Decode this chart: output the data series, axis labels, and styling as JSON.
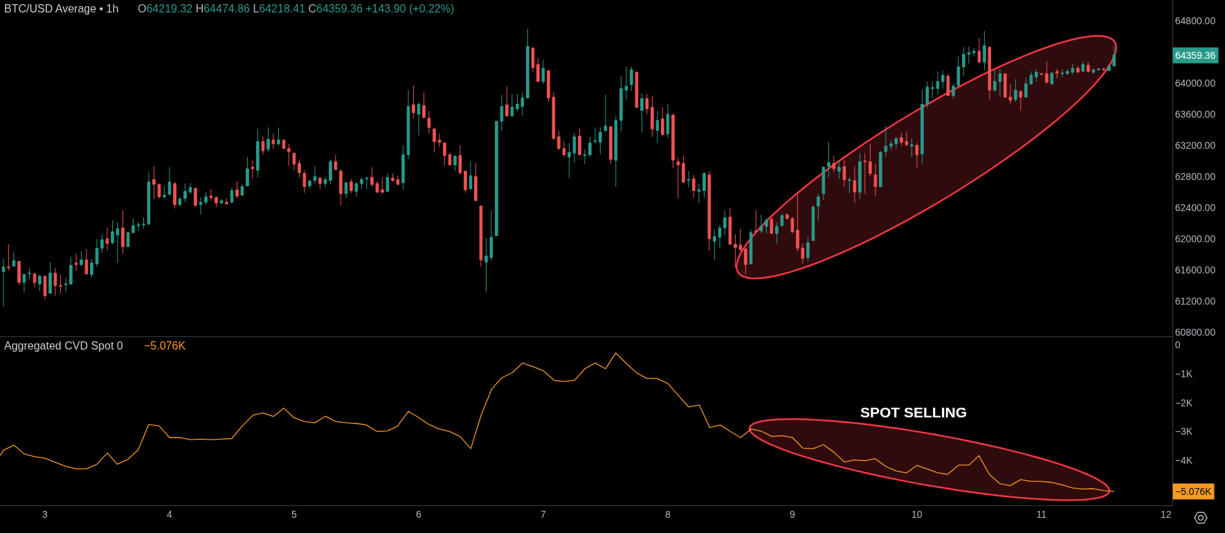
{
  "chart_data": [
    {
      "type": "candlestick",
      "title": "BTC/USD Average • 1h",
      "annotations": [
        "O64219.32 H64474.86 L64218.41 C64359.36 +143.90 (+0.22%)",
        "64359.36"
      ],
      "x": [
        2.667,
        2.708,
        2.75,
        2.792,
        2.833,
        2.875,
        2.917,
        2.958,
        3,
        3.042,
        3.083,
        3.125,
        3.167,
        3.208,
        3.25,
        3.292,
        3.333,
        3.375,
        3.417,
        3.458,
        3.5,
        3.542,
        3.583,
        3.625,
        3.667,
        3.708,
        3.75,
        3.792,
        3.833,
        3.875,
        3.917,
        3.958,
        4,
        4.042,
        4.083,
        4.125,
        4.167,
        4.208,
        4.25,
        4.292,
        4.333,
        4.375,
        4.417,
        4.458,
        4.5,
        4.542,
        4.583,
        4.625,
        4.667,
        4.708,
        4.75,
        4.792,
        4.833,
        4.875,
        4.917,
        4.958,
        5,
        5.042,
        5.083,
        5.125,
        5.167,
        5.208,
        5.25,
        5.292,
        5.333,
        5.375,
        5.417,
        5.458,
        5.5,
        5.542,
        5.583,
        5.625,
        5.667,
        5.708,
        5.75,
        5.792,
        5.833,
        5.875,
        5.917,
        5.958,
        6,
        6.042,
        6.083,
        6.125,
        6.167,
        6.208,
        6.25,
        6.292,
        6.333,
        6.375,
        6.417,
        6.458,
        6.5,
        6.542,
        6.583,
        6.625,
        6.667,
        6.708,
        6.75,
        6.792,
        6.833,
        6.875,
        6.917,
        6.958,
        7,
        7.042,
        7.083,
        7.125,
        7.167,
        7.208,
        7.25,
        7.292,
        7.333,
        7.375,
        7.417,
        7.458,
        7.5,
        7.542,
        7.583,
        7.625,
        7.667,
        7.708,
        7.75,
        7.792,
        7.833,
        7.875,
        7.917,
        7.958,
        8,
        8.042,
        8.083,
        8.125,
        8.167,
        8.208,
        8.25,
        8.292,
        8.333,
        8.375,
        8.417,
        8.458,
        8.5,
        8.542,
        8.583,
        8.625,
        8.667,
        8.708,
        8.75,
        8.792,
        8.833,
        8.875,
        8.917,
        8.958,
        9,
        9.042,
        9.083,
        9.125,
        9.167,
        9.208,
        9.25,
        9.292,
        9.333,
        9.375,
        9.417,
        9.458,
        9.5,
        9.542,
        9.583,
        9.625,
        9.667,
        9.708,
        9.75,
        9.792,
        9.833,
        9.875,
        9.917,
        9.958,
        10,
        10.042,
        10.083,
        10.125,
        10.167,
        10.208,
        10.25,
        10.292,
        10.333,
        10.375,
        10.417,
        10.458,
        10.5,
        10.542,
        10.583,
        10.625,
        10.667,
        10.708,
        10.75,
        10.792,
        10.833,
        10.875,
        10.917,
        10.958,
        11,
        11.042,
        11.083,
        11.125,
        11.167,
        11.208,
        11.25,
        11.292,
        11.333,
        11.375,
        11.417,
        11.458,
        11.5,
        11.542,
        11.583
      ],
      "ohlc": [
        [
          61580,
          61740,
          61130,
          61640
        ],
        [
          61640,
          61930,
          61590,
          61630
        ],
        [
          61650,
          61840,
          61640,
          61720
        ],
        [
          61710,
          61720,
          61410,
          61440
        ],
        [
          61440,
          61560,
          61310,
          61540
        ],
        [
          61550,
          61620,
          61480,
          61560
        ],
        [
          61550,
          61560,
          61380,
          61440
        ],
        [
          61420,
          61540,
          61330,
          61520
        ],
        [
          61520,
          61530,
          61220,
          61270
        ],
        [
          61300,
          61700,
          61300,
          61560
        ],
        [
          61560,
          61630,
          61270,
          61400
        ],
        [
          61400,
          61540,
          61300,
          61390
        ],
        [
          61410,
          61500,
          61310,
          61420
        ],
        [
          61420,
          61770,
          61410,
          61660
        ],
        [
          61690,
          61810,
          61590,
          61670
        ],
        [
          61670,
          61840,
          61650,
          61730
        ],
        [
          61730,
          61870,
          61540,
          61550
        ],
        [
          61540,
          61740,
          61500,
          61690
        ],
        [
          61680,
          62000,
          61640,
          61880
        ],
        [
          61880,
          62060,
          61820,
          61990
        ],
        [
          62000,
          62140,
          61850,
          61940
        ],
        [
          61950,
          62240,
          61930,
          62090
        ],
        [
          62050,
          62220,
          61690,
          62130
        ],
        [
          62140,
          62360,
          61810,
          61900
        ],
        [
          61900,
          62090,
          61900,
          62080
        ],
        [
          62080,
          62260,
          62070,
          62170
        ],
        [
          62170,
          62220,
          62100,
          62180
        ],
        [
          62180,
          62280,
          62130,
          62190
        ],
        [
          62190,
          62850,
          62180,
          62730
        ],
        [
          62760,
          62930,
          62510,
          62700
        ],
        [
          62700,
          62710,
          62520,
          62540
        ],
        [
          62540,
          62670,
          62510,
          62560
        ],
        [
          62570,
          62920,
          62560,
          62730
        ],
        [
          62710,
          62730,
          62390,
          62440
        ],
        [
          62440,
          62540,
          62420,
          62510
        ],
        [
          62520,
          62710,
          62470,
          62610
        ],
        [
          62600,
          62720,
          62580,
          62660
        ],
        [
          62650,
          62650,
          62410,
          62430
        ],
        [
          62440,
          62530,
          62310,
          62470
        ],
        [
          62470,
          62600,
          62440,
          62540
        ],
        [
          62550,
          62640,
          62490,
          62530
        ],
        [
          62530,
          62550,
          62410,
          62460
        ],
        [
          62460,
          62510,
          62440,
          62490
        ],
        [
          62470,
          62520,
          62440,
          62450
        ],
        [
          62470,
          62660,
          62460,
          62620
        ],
        [
          62630,
          62740,
          62520,
          62550
        ],
        [
          62560,
          62700,
          62550,
          62670
        ],
        [
          62680,
          63050,
          62670,
          62900
        ],
        [
          62920,
          63010,
          62770,
          62900
        ],
        [
          62880,
          63410,
          62790,
          63250
        ],
        [
          63250,
          63320,
          63080,
          63130
        ],
        [
          63150,
          63430,
          63110,
          63280
        ],
        [
          63270,
          63350,
          63150,
          63220
        ],
        [
          63220,
          63430,
          63200,
          63270
        ],
        [
          63270,
          63280,
          63150,
          63160
        ],
        [
          63160,
          63220,
          62940,
          63120
        ],
        [
          63100,
          63110,
          62890,
          62960
        ],
        [
          62970,
          63020,
          62790,
          62850
        ],
        [
          62840,
          62880,
          62590,
          62670
        ],
        [
          62680,
          62760,
          62640,
          62740
        ],
        [
          62750,
          62930,
          62710,
          62800
        ],
        [
          62780,
          62790,
          62640,
          62710
        ],
        [
          62710,
          62800,
          62660,
          62760
        ],
        [
          62750,
          63020,
          62700,
          62990
        ],
        [
          62990,
          63080,
          62880,
          62890
        ],
        [
          62870,
          62890,
          62430,
          62580
        ],
        [
          62580,
          62730,
          62520,
          62720
        ],
        [
          62730,
          62770,
          62590,
          62620
        ],
        [
          62610,
          62720,
          62540,
          62710
        ],
        [
          62710,
          62790,
          62640,
          62760
        ],
        [
          62770,
          62790,
          62640,
          62780
        ],
        [
          62790,
          62920,
          62670,
          62700
        ],
        [
          62710,
          62740,
          62590,
          62600
        ],
        [
          62630,
          62790,
          62580,
          62600
        ],
        [
          62610,
          62840,
          62600,
          62790
        ],
        [
          62780,
          62840,
          62730,
          62750
        ],
        [
          62760,
          62810,
          62690,
          62700
        ],
        [
          62720,
          63200,
          62630,
          63080
        ],
        [
          63080,
          63910,
          63020,
          63700
        ],
        [
          63720,
          63970,
          63550,
          63620
        ],
        [
          63600,
          63750,
          63330,
          63730
        ],
        [
          63710,
          63880,
          63540,
          63560
        ],
        [
          63550,
          63640,
          63350,
          63430
        ],
        [
          63410,
          63430,
          63110,
          63250
        ],
        [
          63270,
          63350,
          63180,
          63240
        ],
        [
          63230,
          63240,
          62940,
          63070
        ],
        [
          63080,
          63110,
          62950,
          62950
        ],
        [
          62950,
          63080,
          62870,
          63060
        ],
        [
          63070,
          63200,
          62820,
          62850
        ],
        [
          62870,
          62870,
          62590,
          62630
        ],
        [
          62640,
          63000,
          62640,
          62810
        ],
        [
          62800,
          62970,
          62490,
          62490
        ],
        [
          62420,
          62430,
          61640,
          61730
        ],
        [
          61700,
          62010,
          61310,
          61780
        ],
        [
          61760,
          62360,
          61720,
          62020
        ],
        [
          62040,
          63520,
          62040,
          63510
        ],
        [
          63510,
          63850,
          63380,
          63700
        ],
        [
          63720,
          63960,
          63560,
          63580
        ],
        [
          63580,
          63860,
          63560,
          63690
        ],
        [
          63670,
          63860,
          63640,
          63730
        ],
        [
          63700,
          63880,
          63580,
          63810
        ],
        [
          63810,
          64700,
          63810,
          64470
        ],
        [
          64450,
          64460,
          64140,
          64200
        ],
        [
          64240,
          64320,
          64020,
          64020
        ],
        [
          64020,
          64300,
          63990,
          64190
        ],
        [
          64160,
          64160,
          63760,
          63810
        ],
        [
          63820,
          63880,
          63270,
          63290
        ],
        [
          63310,
          63390,
          63140,
          63160
        ],
        [
          63160,
          63250,
          63050,
          63080
        ],
        [
          63050,
          63230,
          62780,
          63110
        ],
        [
          63100,
          63360,
          62980,
          63310
        ],
        [
          63320,
          63420,
          63070,
          63080
        ],
        [
          63070,
          63150,
          62960,
          63080
        ],
        [
          63080,
          63310,
          63050,
          63230
        ],
        [
          63250,
          63430,
          63220,
          63260
        ],
        [
          63240,
          63430,
          63090,
          63370
        ],
        [
          63390,
          63850,
          63370,
          63450
        ],
        [
          63440,
          63450,
          62960,
          63020
        ],
        [
          63010,
          63570,
          62670,
          63520
        ],
        [
          63520,
          64090,
          63380,
          63930
        ],
        [
          63910,
          64210,
          63790,
          63960
        ],
        [
          63980,
          64210,
          63900,
          64170
        ],
        [
          64140,
          64150,
          63680,
          63690
        ],
        [
          63650,
          63870,
          63370,
          63800
        ],
        [
          63800,
          63860,
          63600,
          63670
        ],
        [
          63690,
          63840,
          63310,
          63410
        ],
        [
          63390,
          63640,
          63230,
          63520
        ],
        [
          63540,
          63690,
          63320,
          63340
        ],
        [
          63350,
          63730,
          63300,
          63600
        ],
        [
          63590,
          63610,
          62910,
          63010
        ],
        [
          62990,
          63040,
          62520,
          62950
        ],
        [
          62970,
          63070,
          62710,
          62730
        ],
        [
          62750,
          62870,
          62660,
          62760
        ],
        [
          62770,
          62820,
          62530,
          62620
        ],
        [
          62610,
          62710,
          62460,
          62630
        ],
        [
          62620,
          62860,
          62530,
          62840
        ],
        [
          62820,
          62870,
          61850,
          62000
        ],
        [
          61970,
          62130,
          61730,
          62030
        ],
        [
          62020,
          62180,
          61880,
          62140
        ],
        [
          62140,
          62360,
          62040,
          62270
        ],
        [
          62280,
          62400,
          61930,
          61930
        ],
        [
          61930,
          62060,
          61630,
          61890
        ],
        [
          61920,
          62130,
          61840,
          61860
        ],
        [
          61870,
          61880,
          61540,
          61670
        ],
        [
          61680,
          62120,
          61670,
          62080
        ],
        [
          62100,
          62370,
          62070,
          62090
        ],
        [
          62100,
          62310,
          62070,
          62160
        ],
        [
          62160,
          62270,
          62070,
          62240
        ],
        [
          62250,
          62270,
          62060,
          62070
        ],
        [
          62070,
          62210,
          61940,
          62160
        ],
        [
          62170,
          62320,
          62160,
          62300
        ],
        [
          62310,
          62330,
          62250,
          62260
        ],
        [
          62260,
          62280,
          62070,
          62090
        ],
        [
          62110,
          62580,
          61840,
          61880
        ],
        [
          61880,
          61940,
          61680,
          61750
        ],
        [
          61760,
          62020,
          61710,
          61950
        ],
        [
          61980,
          62430,
          61970,
          62410
        ],
        [
          62420,
          62580,
          62230,
          62540
        ],
        [
          62580,
          62930,
          62500,
          62920
        ],
        [
          62930,
          63240,
          62790,
          62980
        ],
        [
          62970,
          63070,
          62860,
          62900
        ],
        [
          62870,
          63010,
          62770,
          62920
        ],
        [
          62930,
          63010,
          62670,
          62760
        ],
        [
          62750,
          62790,
          62590,
          62760
        ],
        [
          62750,
          62930,
          62460,
          62600
        ],
        [
          62600,
          63100,
          62510,
          62990
        ],
        [
          63000,
          63100,
          62580,
          62990
        ],
        [
          62990,
          63220,
          62800,
          62840
        ],
        [
          62820,
          62960,
          62550,
          62670
        ],
        [
          62670,
          63130,
          62660,
          63110
        ],
        [
          63120,
          63450,
          63050,
          63190
        ],
        [
          63190,
          63270,
          63140,
          63220
        ],
        [
          63220,
          63300,
          63160,
          63290
        ],
        [
          63300,
          63360,
          63200,
          63240
        ],
        [
          63250,
          63380,
          63190,
          63210
        ],
        [
          63190,
          63290,
          63050,
          63210
        ],
        [
          63200,
          63230,
          62910,
          63080
        ],
        [
          63090,
          63920,
          62960,
          63730
        ],
        [
          63730,
          64020,
          63680,
          63950
        ],
        [
          63930,
          64020,
          63810,
          63940
        ],
        [
          63930,
          64150,
          63850,
          64020
        ],
        [
          64020,
          64160,
          63930,
          64100
        ],
        [
          64090,
          64120,
          63830,
          63840
        ],
        [
          63840,
          63990,
          63800,
          63960
        ],
        [
          63970,
          64340,
          63960,
          64210
        ],
        [
          64210,
          64460,
          64090,
          64370
        ],
        [
          64370,
          64470,
          64250,
          64390
        ],
        [
          64390,
          64450,
          64340,
          64410
        ],
        [
          64410,
          64580,
          64250,
          64270
        ],
        [
          64270,
          64670,
          64160,
          64480
        ],
        [
          64460,
          64470,
          63790,
          63910
        ],
        [
          63910,
          64180,
          63890,
          64020
        ],
        [
          64020,
          64180,
          63830,
          64120
        ],
        [
          64120,
          64120,
          63820,
          63820
        ],
        [
          63820,
          63990,
          63730,
          63780
        ],
        [
          63790,
          64050,
          63760,
          63910
        ],
        [
          63890,
          63910,
          63650,
          63820
        ],
        [
          63820,
          64070,
          63810,
          63990
        ],
        [
          63990,
          64150,
          63980,
          64100
        ],
        [
          64080,
          64180,
          64020,
          64140
        ],
        [
          64120,
          64130,
          64100,
          64110
        ],
        [
          64120,
          64280,
          63990,
          64010
        ],
        [
          63990,
          64140,
          63980,
          64130
        ],
        [
          64150,
          64180,
          64060,
          64130
        ],
        [
          64120,
          64180,
          64080,
          64130
        ],
        [
          64120,
          64180,
          64110,
          64150
        ],
        [
          64140,
          64250,
          64110,
          64190
        ],
        [
          64190,
          64220,
          64140,
          64140
        ],
        [
          64150,
          64280,
          64140,
          64240
        ],
        [
          64230,
          64270,
          64140,
          64150
        ],
        [
          64140,
          64190,
          64120,
          64170
        ],
        [
          64170,
          64200,
          64160,
          64180
        ],
        [
          64180,
          64200,
          64160,
          64170
        ],
        [
          64160,
          64230,
          64150,
          64220
        ],
        [
          64219.32,
          64474.86,
          64218.41,
          64359.36
        ]
      ],
      "colors": [
        "#289a8a",
        "#ef5350",
        "#289a8a",
        "#ef5350",
        "#289a8a",
        "#289a8a",
        "#ef5350",
        "#289a8a",
        "#ef5350",
        "#289a8a",
        "#ef5350",
        "#ef5350",
        "#289a8a",
        "#289a8a",
        "#ef5350",
        "#289a8a",
        "#ef5350",
        "#289a8a",
        "#289a8a",
        "#289a8a",
        "#ef5350",
        "#289a8a",
        "#289a8a",
        "#ef5350",
        "#289a8a",
        "#289a8a",
        "#289a8a",
        "#289a8a",
        "#289a8a",
        "#ef5350",
        "#ef5350",
        "#289a8a",
        "#289a8a",
        "#ef5350",
        "#289a8a",
        "#289a8a",
        "#289a8a",
        "#ef5350",
        "#289a8a",
        "#289a8a",
        "#ef5350",
        "#ef5350",
        "#289a8a",
        "#ef5350",
        "#289a8a",
        "#ef5350",
        "#289a8a",
        "#289a8a",
        "#ef5350",
        "#289a8a",
        "#ef5350",
        "#289a8a",
        "#ef5350",
        "#289a8a",
        "#ef5350",
        "#ef5350",
        "#ef5350",
        "#ef5350",
        "#ef5350",
        "#289a8a",
        "#289a8a",
        "#ef5350",
        "#289a8a",
        "#289a8a",
        "#ef5350",
        "#ef5350",
        "#289a8a",
        "#ef5350",
        "#289a8a",
        "#289a8a",
        "#289a8a",
        "#ef5350",
        "#ef5350",
        "#ef5350",
        "#289a8a",
        "#ef5350",
        "#ef5350",
        "#289a8a",
        "#289a8a",
        "#ef5350",
        "#289a8a",
        "#ef5350",
        "#ef5350",
        "#ef5350",
        "#ef5350",
        "#ef5350",
        "#ef5350",
        "#289a8a",
        "#ef5350",
        "#ef5350",
        "#289a8a",
        "#ef5350",
        "#ef5350",
        "#289a8a",
        "#289a8a",
        "#289a8a",
        "#289a8a",
        "#ef5350",
        "#289a8a",
        "#289a8a",
        "#289a8a",
        "#289a8a",
        "#ef5350",
        "#ef5350",
        "#289a8a",
        "#ef5350",
        "#ef5350",
        "#ef5350",
        "#ef5350",
        "#289a8a",
        "#289a8a",
        "#ef5350",
        "#289a8a",
        "#289a8a",
        "#289a8a",
        "#289a8a",
        "#289a8a",
        "#ef5350",
        "#289a8a",
        "#289a8a",
        "#289a8a",
        "#289a8a",
        "#ef5350",
        "#289a8a",
        "#ef5350",
        "#ef5350",
        "#289a8a",
        "#ef5350",
        "#289a8a",
        "#ef5350",
        "#ef5350",
        "#ef5350",
        "#289a8a",
        "#ef5350",
        "#289a8a",
        "#289a8a",
        "#ef5350",
        "#289a8a",
        "#289a8a",
        "#289a8a",
        "#ef5350",
        "#ef5350",
        "#ef5350",
        "#ef5350",
        "#289a8a",
        "#ef5350",
        "#289a8a",
        "#289a8a",
        "#ef5350",
        "#289a8a",
        "#289a8a",
        "#ef5350",
        "#ef5350",
        "#ef5350",
        "#ef5350",
        "#289a8a",
        "#289a8a",
        "#289a8a",
        "#289a8a",
        "#289a8a",
        "#ef5350",
        "#289a8a",
        "#ef5350",
        "#289a8a",
        "#ef5350",
        "#289a8a",
        "#ef5350",
        "#ef5350",
        "#ef5350",
        "#289a8a",
        "#289a8a",
        "#289a8a",
        "#289a8a",
        "#ef5350",
        "#ef5350",
        "#289a8a",
        "#ef5350",
        "#289a8a",
        "#289a8a",
        "#289a8a",
        "#289a8a",
        "#289a8a",
        "#ef5350",
        "#289a8a",
        "#289a8a",
        "#289a8a",
        "#289a8a",
        "#289a8a",
        "#ef5350",
        "#289a8a",
        "#ef5350",
        "#289a8a",
        "#289a8a",
        "#ef5350",
        "#ef5350",
        "#289a8a",
        "#ef5350",
        "#289a8a",
        "#289a8a",
        "#289a8a",
        "#ef5350",
        "#ef5350",
        "#289a8a",
        "#ef5350",
        "#289a8a",
        "#289a8a",
        "#289a8a",
        "#ef5350",
        "#289a8a",
        "#ef5350",
        "#289a8a",
        "#289a8a",
        "#ef5350",
        "#289a8a",
        "#289a8a"
      ],
      "xlim": [
        2.639,
        12.051
      ],
      "ylim": [
        60747,
        65067
      ],
      "yticks": [
        {
          "value": 60800,
          "label": "60800.00"
        },
        {
          "value": 61200,
          "label": "61200.00"
        },
        {
          "value": 61600,
          "label": "61600.00"
        },
        {
          "value": 62000,
          "label": "62000.00"
        },
        {
          "value": 62400,
          "label": "62400.00"
        },
        {
          "value": 62800,
          "label": "62800.00"
        },
        {
          "value": 63200,
          "label": "63200.00"
        },
        {
          "value": 63600,
          "label": "63600.00"
        },
        {
          "value": 64000,
          "label": "64000.00"
        },
        {
          "value": 64800,
          "label": "64800.00"
        }
      ],
      "tick_labels": "y"
    },
    {
      "type": "line",
      "title": "Aggregated CVD Spot 0",
      "annotations": [
        "−5.076K",
        "−5.076K",
        "SPOT SELLING"
      ],
      "series": [
        {
          "color": "#f59a23",
          "x": [
            2.64,
            2.665,
            2.751,
            2.831,
            2.92,
            3.0,
            3.086,
            3.166,
            3.252,
            3.332,
            3.414,
            3.501,
            3.58,
            3.666,
            3.749,
            3.832,
            3.915,
            4.001,
            4.081,
            4.17,
            4.25,
            4.336,
            4.416,
            4.499,
            4.585,
            4.671,
            4.751,
            4.834,
            4.917,
            4.999,
            5.082,
            5.166,
            5.252,
            5.334,
            5.421,
            5.5,
            5.58,
            5.666,
            5.749,
            5.829,
            5.918,
            5.998,
            6.084,
            6.163,
            6.249,
            6.333,
            6.418,
            6.505,
            6.588,
            6.667,
            6.753,
            6.833,
            6.913,
            7.002,
            7.088,
            7.168,
            7.254,
            7.334,
            7.417,
            7.5,
            7.582,
            7.664,
            7.749,
            7.831,
            7.913,
            8.001,
            8.083,
            8.168,
            8.253,
            8.336,
            8.421,
            8.5,
            8.584,
            8.669,
            8.752,
            8.837,
            8.916,
            9.001,
            9.086,
            9.168,
            9.25,
            9.332,
            9.417,
            9.499,
            9.584,
            9.666,
            9.751,
            9.833,
            9.915,
            10.0,
            10.082,
            10.164,
            10.246,
            10.334,
            10.417,
            10.498,
            10.581,
            10.666,
            10.748,
            10.833,
            10.915,
            10.997,
            11.082,
            11.164,
            11.249,
            11.331,
            11.413,
            11.495,
            11.583
          ],
          "values": [
            -3.83,
            -3.65,
            -3.47,
            -3.77,
            -3.87,
            -3.92,
            -4.07,
            -4.2,
            -4.29,
            -4.29,
            -4.14,
            -3.74,
            -4.13,
            -3.96,
            -3.63,
            -2.76,
            -2.8,
            -3.21,
            -3.21,
            -3.28,
            -3.26,
            -3.28,
            -3.26,
            -3.24,
            -2.8,
            -2.43,
            -2.36,
            -2.48,
            -2.19,
            -2.52,
            -2.65,
            -2.7,
            -2.47,
            -2.65,
            -2.7,
            -2.72,
            -2.77,
            -3.0,
            -2.98,
            -2.82,
            -2.3,
            -2.51,
            -2.76,
            -2.91,
            -3.0,
            -3.17,
            -3.59,
            -2.39,
            -1.52,
            -1.14,
            -0.96,
            -0.63,
            -0.75,
            -0.9,
            -1.23,
            -1.27,
            -1.22,
            -0.83,
            -0.63,
            -0.83,
            -0.28,
            -0.63,
            -0.97,
            -1.16,
            -1.16,
            -1.34,
            -1.74,
            -2.15,
            -2.08,
            -2.86,
            -2.77,
            -2.99,
            -3.21,
            -2.91,
            -2.99,
            -3.17,
            -3.14,
            -3.21,
            -3.58,
            -3.59,
            -3.45,
            -3.71,
            -4.05,
            -3.98,
            -4.01,
            -3.94,
            -4.21,
            -4.36,
            -4.43,
            -4.17,
            -4.29,
            -4.42,
            -4.48,
            -4.16,
            -4.16,
            -3.83,
            -4.48,
            -4.8,
            -4.87,
            -4.66,
            -4.72,
            -4.72,
            -4.76,
            -4.84,
            -4.95,
            -4.99,
            -4.97,
            -5.04,
            -5.076
          ]
        }
      ],
      "xlim": [
        2.639,
        12.051
      ],
      "xticks": [
        3,
        4,
        5,
        6,
        7,
        8,
        9,
        10,
        11,
        12
      ],
      "ylim": [
        -5.55,
        0.29
      ],
      "yticks": [
        0,
        {
          "value": -1,
          "label": "−1K"
        },
        {
          "value": -2,
          "label": "−2K"
        },
        {
          "value": -3,
          "label": "−3K"
        },
        {
          "value": -4,
          "label": "−4K"
        }
      ]
    }
  ]
}
